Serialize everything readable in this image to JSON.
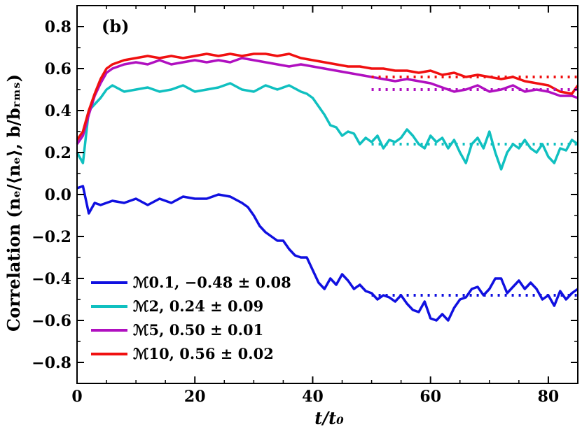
{
  "chart_data": {
    "type": "line",
    "panel_label": "(b)",
    "xlabel": "t/t₀",
    "ylabel": "Correlation (nₑ/⟨nₑ⟩, b/bᵣₘₛ)",
    "xlim": [
      0,
      85
    ],
    "ylim": [
      -0.9,
      0.9
    ],
    "xticks": [
      0,
      20,
      40,
      60,
      80
    ],
    "xtick_labels": [
      "0",
      "20",
      "40",
      "60",
      "80"
    ],
    "yticks": [
      -0.8,
      -0.6,
      -0.4,
      -0.2,
      0.0,
      0.2,
      0.4,
      0.6,
      0.8
    ],
    "ytick_labels": [
      "−0.8",
      "−0.6",
      "−0.4",
      "−0.2",
      "0.0",
      "0.2",
      "0.4",
      "0.6",
      "0.8"
    ],
    "legend_position": "lower-left",
    "series": [
      {
        "name": "ℳ0.1, −0.48 ± 0.08",
        "color": "#1010e0",
        "mean": -0.48,
        "mean_from": 50,
        "x": [
          0,
          1,
          2,
          3,
          4,
          6,
          8,
          10,
          12,
          14,
          16,
          18,
          20,
          22,
          24,
          26,
          28,
          29,
          30,
          31,
          32,
          33,
          34,
          35,
          36,
          37,
          38,
          39,
          40,
          41,
          42,
          43,
          44,
          45,
          46,
          47,
          48,
          49,
          50,
          51,
          52,
          53,
          54,
          55,
          56,
          57,
          58,
          59,
          60,
          61,
          62,
          63,
          64,
          65,
          66,
          67,
          68,
          69,
          70,
          71,
          72,
          73,
          74,
          75,
          76,
          77,
          78,
          79,
          80,
          81,
          82,
          83,
          84,
          85
        ],
        "y": [
          0.03,
          0.04,
          -0.09,
          -0.04,
          -0.05,
          -0.03,
          -0.04,
          -0.02,
          -0.05,
          -0.02,
          -0.04,
          -0.01,
          -0.02,
          -0.02,
          0.0,
          -0.01,
          -0.04,
          -0.06,
          -0.1,
          -0.15,
          -0.18,
          -0.2,
          -0.22,
          -0.22,
          -0.26,
          -0.29,
          -0.3,
          -0.3,
          -0.36,
          -0.42,
          -0.45,
          -0.4,
          -0.43,
          -0.38,
          -0.41,
          -0.45,
          -0.43,
          -0.46,
          -0.47,
          -0.5,
          -0.48,
          -0.49,
          -0.51,
          -0.48,
          -0.52,
          -0.55,
          -0.56,
          -0.51,
          -0.59,
          -0.6,
          -0.57,
          -0.6,
          -0.54,
          -0.5,
          -0.49,
          -0.45,
          -0.44,
          -0.48,
          -0.45,
          -0.4,
          -0.4,
          -0.47,
          -0.44,
          -0.41,
          -0.45,
          -0.42,
          -0.45,
          -0.5,
          -0.48,
          -0.53,
          -0.46,
          -0.5,
          -0.47,
          -0.45
        ]
      },
      {
        "name": "ℳ2, 0.24 ± 0.09",
        "color": "#10c0c0",
        "mean": 0.24,
        "mean_from": 50,
        "x": [
          0,
          1,
          2,
          3,
          4,
          5,
          6,
          8,
          10,
          12,
          14,
          16,
          18,
          20,
          22,
          24,
          26,
          28,
          30,
          32,
          34,
          36,
          38,
          39,
          40,
          41,
          42,
          43,
          44,
          45,
          46,
          47,
          48,
          49,
          50,
          51,
          52,
          53,
          54,
          55,
          56,
          57,
          58,
          59,
          60,
          61,
          62,
          63,
          64,
          65,
          66,
          67,
          68,
          69,
          70,
          71,
          72,
          73,
          74,
          75,
          76,
          77,
          78,
          79,
          80,
          81,
          82,
          83,
          84,
          85
        ],
        "y": [
          0.2,
          0.15,
          0.4,
          0.43,
          0.46,
          0.5,
          0.52,
          0.49,
          0.5,
          0.51,
          0.49,
          0.5,
          0.52,
          0.49,
          0.5,
          0.51,
          0.53,
          0.5,
          0.49,
          0.52,
          0.5,
          0.52,
          0.49,
          0.48,
          0.46,
          0.42,
          0.38,
          0.33,
          0.32,
          0.28,
          0.3,
          0.29,
          0.24,
          0.27,
          0.25,
          0.28,
          0.22,
          0.26,
          0.25,
          0.27,
          0.31,
          0.28,
          0.24,
          0.22,
          0.28,
          0.25,
          0.27,
          0.22,
          0.26,
          0.2,
          0.15,
          0.24,
          0.27,
          0.22,
          0.3,
          0.2,
          0.12,
          0.2,
          0.24,
          0.22,
          0.26,
          0.22,
          0.2,
          0.24,
          0.18,
          0.15,
          0.22,
          0.21,
          0.26,
          0.24
        ]
      },
      {
        "name": "ℳ5, 0.50 ± 0.01",
        "color": "#b010c0",
        "mean": 0.5,
        "mean_from": 50,
        "x": [
          0,
          1,
          2,
          3,
          4,
          5,
          6,
          8,
          10,
          12,
          14,
          16,
          18,
          20,
          22,
          24,
          26,
          28,
          30,
          32,
          34,
          36,
          38,
          40,
          42,
          44,
          46,
          48,
          50,
          52,
          54,
          56,
          58,
          60,
          62,
          64,
          66,
          68,
          70,
          72,
          74,
          76,
          78,
          80,
          82,
          84,
          85
        ],
        "y": [
          0.24,
          0.28,
          0.38,
          0.47,
          0.53,
          0.58,
          0.6,
          0.62,
          0.63,
          0.62,
          0.64,
          0.62,
          0.63,
          0.64,
          0.63,
          0.64,
          0.63,
          0.65,
          0.64,
          0.63,
          0.62,
          0.61,
          0.62,
          0.61,
          0.6,
          0.59,
          0.58,
          0.57,
          0.56,
          0.55,
          0.54,
          0.55,
          0.54,
          0.53,
          0.51,
          0.49,
          0.5,
          0.52,
          0.49,
          0.5,
          0.52,
          0.49,
          0.5,
          0.49,
          0.47,
          0.47,
          0.46
        ]
      },
      {
        "name": "ℳ10, 0.56 ± 0.02",
        "color": "#f01010",
        "mean": 0.56,
        "mean_from": 50,
        "x": [
          0,
          1,
          2,
          3,
          4,
          5,
          6,
          8,
          10,
          12,
          14,
          16,
          18,
          20,
          22,
          24,
          26,
          28,
          30,
          32,
          34,
          36,
          38,
          40,
          42,
          44,
          46,
          48,
          50,
          52,
          54,
          56,
          58,
          60,
          62,
          64,
          66,
          68,
          70,
          72,
          74,
          76,
          78,
          80,
          82,
          84,
          85
        ],
        "y": [
          0.26,
          0.3,
          0.4,
          0.48,
          0.55,
          0.6,
          0.62,
          0.64,
          0.65,
          0.66,
          0.65,
          0.66,
          0.65,
          0.66,
          0.67,
          0.66,
          0.67,
          0.66,
          0.67,
          0.67,
          0.66,
          0.67,
          0.65,
          0.64,
          0.63,
          0.62,
          0.61,
          0.61,
          0.6,
          0.6,
          0.59,
          0.59,
          0.58,
          0.59,
          0.57,
          0.58,
          0.56,
          0.57,
          0.56,
          0.55,
          0.56,
          0.54,
          0.53,
          0.52,
          0.49,
          0.48,
          0.52
        ]
      }
    ]
  }
}
